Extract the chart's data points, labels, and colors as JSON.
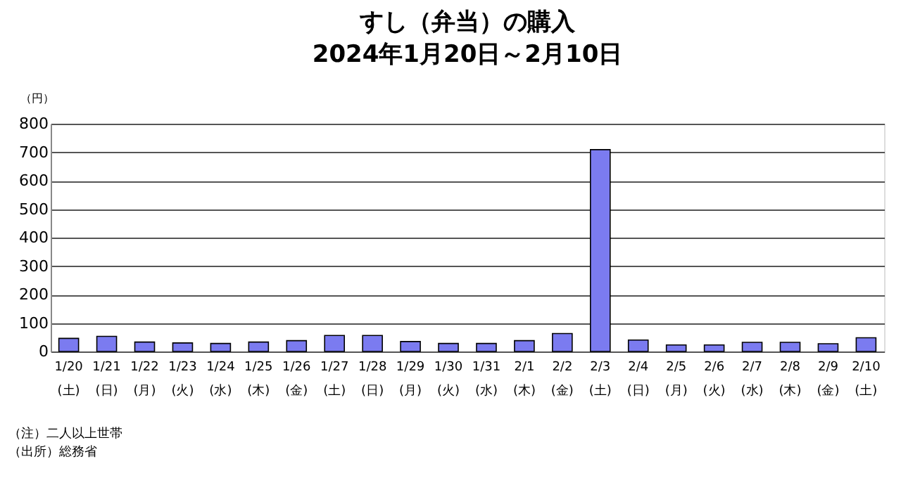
{
  "chart_data": {
    "type": "bar",
    "title": "すし（弁当）の購入",
    "subtitle": "2024年1月20日～2月10日",
    "ylabel": "（円）",
    "categories": [
      "1/20\n(土)",
      "1/21\n(日)",
      "1/22\n(月)",
      "1/23\n(火)",
      "1/24\n(水)",
      "1/25\n(木)",
      "1/26\n(金)",
      "1/27\n(土)",
      "1/28\n(日)",
      "1/29\n(月)",
      "1/30\n(火)",
      "1/31\n(水)",
      "2/1\n(木)",
      "2/2\n(金)",
      "2/3\n(土)",
      "2/4\n(日)",
      "2/5\n(月)",
      "2/6\n(火)",
      "2/7\n(水)",
      "2/8\n(木)",
      "2/9\n(金)",
      "2/10\n(土)"
    ],
    "values": [
      46,
      53,
      33,
      30,
      28,
      33,
      38,
      56,
      56,
      35,
      28,
      28,
      38,
      63,
      709,
      40,
      23,
      23,
      32,
      32,
      27,
      48
    ],
    "color": "#7b7bf0",
    "ylim": [
      0,
      800
    ],
    "yticks": [
      0,
      100,
      200,
      300,
      400,
      500,
      600,
      700,
      800
    ],
    "grid": "y",
    "annotations": [
      "（注）二人以上世帯",
      "（出所）総務省"
    ]
  }
}
